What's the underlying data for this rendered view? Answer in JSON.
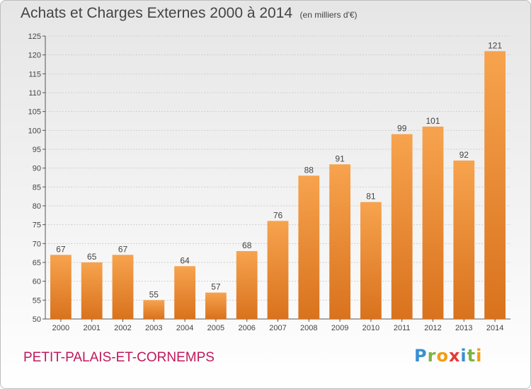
{
  "header": {
    "title": "Achats et Charges Externes 2000 à 2014",
    "unit": "(en milliers d'€)"
  },
  "footer": {
    "commune": "PETIT-PALAIS-ET-CORNEMPS",
    "logo_letters": [
      "P",
      "r",
      "o",
      "x",
      "i",
      "t",
      "i"
    ],
    "logo_colors": [
      "#3a8fd0",
      "#7cb342",
      "#f39c12",
      "#e53935",
      "#3a8fd0",
      "#7cb342",
      "#f39c12"
    ]
  },
  "colors": {
    "bar_light": "#f7a34e",
    "bar_dark": "#d9721d",
    "grid": "#cfcfcf",
    "axis": "#555555"
  },
  "chart_data": {
    "type": "bar",
    "categories": [
      "2000",
      "2001",
      "2002",
      "2003",
      "2004",
      "2005",
      "2006",
      "2007",
      "2008",
      "2009",
      "2010",
      "2011",
      "2012",
      "2013",
      "2014"
    ],
    "values": [
      67,
      65,
      67,
      55,
      64,
      57,
      68,
      76,
      88,
      91,
      81,
      99,
      101,
      92,
      121
    ],
    "title": "Achats et Charges Externes 2000 à 2014",
    "xlabel": "",
    "ylabel": "",
    "ylim": [
      50,
      125
    ],
    "yticks": [
      50,
      55,
      60,
      65,
      70,
      75,
      80,
      85,
      90,
      95,
      100,
      105,
      110,
      115,
      120,
      125
    ],
    "grid": true,
    "legend": "none"
  }
}
